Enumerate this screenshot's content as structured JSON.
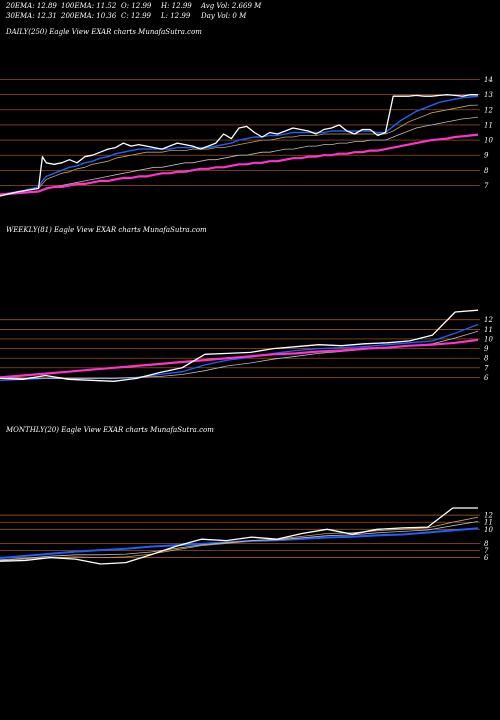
{
  "header": {
    "row1": [
      {
        "label": "20EMA: 12.89"
      },
      {
        "label": "100EMA: 11.52"
      },
      {
        "label": "O: 12.99"
      },
      {
        "label": "H: 12.99"
      },
      {
        "label": "Avg Vol: 2.669 M"
      }
    ],
    "row2": [
      {
        "label": "30EMA: 12.31"
      },
      {
        "label": "200EMA: 10.36"
      },
      {
        "label": "C: 12.99"
      },
      {
        "label": "L: 12.99"
      },
      {
        "label": "Day Vol: 0  M"
      }
    ]
  },
  "colors": {
    "background": "#000000",
    "price": "#ffffff",
    "grid": "#b5651d",
    "ema_short": "#1f5fff",
    "ema_long": "#ff33cc",
    "ema_mid": "#c8a060",
    "ema_gray": "#bbbbbb"
  },
  "chart_data": [
    {
      "type": "line",
      "title": "DAILY(250) Eagle   View  EXAR charts MunafaSutra.com",
      "y_ticks": [
        14,
        13,
        12,
        11,
        10,
        9,
        8,
        7
      ],
      "ylim": [
        6.5,
        14.5
      ],
      "x": [
        0,
        10,
        20,
        22,
        24,
        28,
        32,
        36,
        40,
        44,
        48,
        52,
        56,
        60,
        64,
        68,
        72,
        76,
        80,
        84,
        88,
        92,
        96,
        100,
        104,
        108,
        112,
        116,
        120,
        124,
        128,
        132,
        136,
        140,
        144,
        148,
        152,
        156,
        160,
        164,
        168,
        172,
        176,
        180,
        184,
        188,
        192,
        196,
        200,
        204,
        208,
        212,
        216,
        220,
        224,
        228,
        232,
        236,
        240,
        244,
        248
      ],
      "series": [
        {
          "role": "price",
          "values": [
            6.3,
            6.6,
            6.8,
            8.9,
            8.5,
            8.4,
            8.5,
            8.7,
            8.5,
            8.9,
            9.0,
            9.2,
            9.4,
            9.5,
            9.8,
            9.6,
            9.7,
            9.6,
            9.5,
            9.4,
            9.6,
            9.8,
            9.7,
            9.6,
            9.4,
            9.6,
            9.8,
            10.4,
            10.1,
            10.8,
            10.9,
            10.5,
            10.2,
            10.5,
            10.4,
            10.6,
            10.8,
            10.7,
            10.6,
            10.4,
            10.7,
            10.8,
            11.0,
            10.6,
            10.4,
            10.7,
            10.7,
            10.3,
            10.5,
            12.9,
            12.9,
            12.9,
            12.95,
            12.9,
            12.9,
            12.95,
            13.0,
            12.95,
            12.9,
            13.0,
            12.99
          ]
        },
        {
          "role": "ema20",
          "values": [
            6.4,
            6.6,
            6.9,
            7.3,
            7.6,
            7.8,
            8.0,
            8.2,
            8.3,
            8.5,
            8.6,
            8.8,
            8.9,
            9.1,
            9.2,
            9.3,
            9.4,
            9.4,
            9.4,
            9.4,
            9.4,
            9.5,
            9.5,
            9.5,
            9.5,
            9.5,
            9.6,
            9.7,
            9.8,
            10.0,
            10.1,
            10.2,
            10.2,
            10.3,
            10.3,
            10.4,
            10.5,
            10.5,
            10.5,
            10.5,
            10.5,
            10.6,
            10.6,
            10.6,
            10.6,
            10.6,
            10.6,
            10.5,
            10.5,
            10.9,
            11.3,
            11.6,
            11.9,
            12.1,
            12.3,
            12.5,
            12.6,
            12.7,
            12.8,
            12.85,
            12.89
          ]
        },
        {
          "role": "ema30",
          "values": [
            6.4,
            6.6,
            6.8,
            7.1,
            7.4,
            7.6,
            7.8,
            7.9,
            8.1,
            8.2,
            8.4,
            8.5,
            8.6,
            8.8,
            8.9,
            9.0,
            9.1,
            9.2,
            9.2,
            9.2,
            9.3,
            9.3,
            9.3,
            9.4,
            9.4,
            9.4,
            9.5,
            9.5,
            9.6,
            9.7,
            9.8,
            9.9,
            10.0,
            10.0,
            10.1,
            10.2,
            10.2,
            10.3,
            10.3,
            10.3,
            10.4,
            10.4,
            10.4,
            10.4,
            10.4,
            10.4,
            10.4,
            10.4,
            10.4,
            10.6,
            10.9,
            11.2,
            11.4,
            11.6,
            11.8,
            11.9,
            12.0,
            12.1,
            12.2,
            12.3,
            12.31
          ]
        },
        {
          "role": "ema100",
          "values": [
            6.4,
            6.5,
            6.6,
            6.7,
            6.8,
            6.9,
            7.0,
            7.1,
            7.2,
            7.3,
            7.4,
            7.5,
            7.6,
            7.7,
            7.8,
            7.9,
            8.0,
            8.1,
            8.2,
            8.2,
            8.3,
            8.4,
            8.5,
            8.5,
            8.6,
            8.7,
            8.7,
            8.8,
            8.9,
            9.0,
            9.0,
            9.1,
            9.2,
            9.2,
            9.3,
            9.4,
            9.4,
            9.5,
            9.6,
            9.6,
            9.7,
            9.7,
            9.8,
            9.8,
            9.9,
            9.9,
            10.0,
            10.0,
            10.0,
            10.2,
            10.4,
            10.6,
            10.8,
            10.9,
            11.0,
            11.1,
            11.2,
            11.3,
            11.4,
            11.45,
            11.52
          ]
        },
        {
          "role": "ema200",
          "values": [
            6.4,
            6.5,
            6.6,
            6.7,
            6.8,
            6.9,
            6.9,
            7.0,
            7.1,
            7.1,
            7.2,
            7.3,
            7.3,
            7.4,
            7.5,
            7.5,
            7.6,
            7.6,
            7.7,
            7.8,
            7.8,
            7.9,
            7.9,
            8.0,
            8.1,
            8.1,
            8.2,
            8.2,
            8.3,
            8.4,
            8.4,
            8.5,
            8.5,
            8.6,
            8.6,
            8.7,
            8.8,
            8.8,
            8.9,
            8.9,
            9.0,
            9.0,
            9.1,
            9.1,
            9.2,
            9.2,
            9.3,
            9.3,
            9.4,
            9.5,
            9.6,
            9.7,
            9.8,
            9.9,
            10.0,
            10.05,
            10.1,
            10.2,
            10.25,
            10.3,
            10.36
          ]
        }
      ]
    },
    {
      "type": "line",
      "title": "WEEKLY(81) Eagle   View  EXAR charts MunafaSutra.com",
      "y_ticks": [
        12,
        11,
        10,
        9,
        8,
        7,
        6
      ],
      "ylim": [
        4.9,
        12.7
      ],
      "x": [
        0,
        4,
        8,
        12,
        16,
        20,
        24,
        28,
        32,
        36,
        40,
        44,
        48,
        52,
        56,
        60,
        64,
        68,
        72,
        76,
        80,
        84
      ],
      "series": [
        {
          "role": "price",
          "values": [
            5.9,
            5.8,
            6.2,
            5.8,
            5.7,
            5.6,
            5.9,
            6.5,
            7.0,
            8.4,
            8.5,
            8.6,
            9.0,
            9.2,
            9.4,
            9.3,
            9.5,
            9.6,
            9.8,
            10.4,
            12.8,
            12.99
          ]
        },
        {
          "role": "ema_fast",
          "values": [
            5.7,
            5.8,
            5.9,
            5.9,
            5.9,
            5.9,
            6.0,
            6.3,
            6.6,
            7.3,
            7.8,
            8.1,
            8.5,
            8.8,
            9.0,
            9.1,
            9.2,
            9.4,
            9.6,
            9.8,
            10.6,
            11.5
          ]
        },
        {
          "role": "ema_slow",
          "values": [
            6.0,
            5.9,
            5.9,
            5.9,
            5.9,
            5.9,
            6.0,
            6.1,
            6.3,
            6.7,
            7.2,
            7.5,
            7.9,
            8.2,
            8.5,
            8.7,
            8.9,
            9.1,
            9.3,
            9.5,
            10.1,
            10.8
          ]
        },
        {
          "role": "ema_pink",
          "values": [
            6.0,
            6.2,
            6.4,
            6.6,
            6.8,
            7.0,
            7.2,
            7.4,
            7.6,
            7.8,
            8.0,
            8.2,
            8.4,
            8.5,
            8.7,
            8.8,
            9.0,
            9.1,
            9.3,
            9.4,
            9.6,
            9.9
          ]
        }
      ]
    },
    {
      "type": "line",
      "title": "MONTHLY(20) Eagle   View  EXAR charts MunafaSutra.com",
      "y_ticks": [
        12,
        11,
        10,
        8,
        7,
        6
      ],
      "ylim": [
        2.0,
        13.0
      ],
      "x": [
        0,
        1,
        2,
        3,
        4,
        5,
        6,
        7,
        8,
        9,
        10,
        11,
        12,
        13,
        14,
        15,
        16,
        17,
        18,
        19
      ],
      "series": [
        {
          "role": "price",
          "values": [
            5.5,
            5.6,
            6.0,
            5.8,
            5.1,
            5.3,
            6.4,
            7.6,
            8.6,
            8.4,
            8.9,
            8.6,
            9.4,
            10.0,
            9.3,
            10.0,
            10.2,
            10.3,
            13.0,
            13.0
          ]
        },
        {
          "role": "ema_blue1",
          "values": [
            6.0,
            6.3,
            6.6,
            6.9,
            7.1,
            7.3,
            7.6,
            7.8,
            8.0,
            8.2,
            8.4,
            8.5,
            8.7,
            8.9,
            9.0,
            9.2,
            9.3,
            9.6,
            9.9,
            10.2
          ]
        },
        {
          "role": "ema_blue2",
          "values": [
            5.9,
            6.2,
            6.5,
            6.8,
            7.0,
            7.2,
            7.5,
            7.7,
            7.9,
            8.1,
            8.3,
            8.4,
            8.6,
            8.8,
            8.9,
            9.1,
            9.2,
            9.5,
            9.8,
            10.1
          ]
        },
        {
          "role": "ema_mid",
          "values": [
            5.6,
            5.8,
            6.0,
            6.1,
            6.0,
            6.1,
            6.5,
            7.1,
            7.7,
            8.0,
            8.4,
            8.6,
            9.0,
            9.4,
            9.5,
            9.8,
            10.0,
            10.2,
            11.0,
            11.7
          ]
        },
        {
          "role": "ema_gray",
          "values": [
            5.7,
            5.9,
            6.2,
            6.4,
            6.4,
            6.5,
            6.8,
            7.3,
            7.8,
            8.1,
            8.4,
            8.5,
            8.8,
            9.1,
            9.2,
            9.5,
            9.7,
            9.9,
            10.5,
            11.1
          ]
        }
      ]
    }
  ]
}
